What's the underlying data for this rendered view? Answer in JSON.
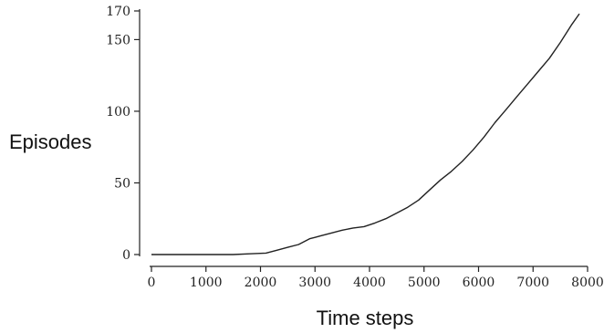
{
  "chart_data": {
    "type": "line",
    "xlabel": "Time steps",
    "ylabel": "Episodes",
    "xlim": [
      0,
      8000
    ],
    "ylim": [
      0,
      170
    ],
    "x_ticks": [
      0,
      1000,
      2000,
      3000,
      4000,
      5000,
      6000,
      7000,
      8000
    ],
    "y_ticks": [
      0,
      50,
      100,
      150,
      170
    ],
    "grid": false,
    "colors": {
      "line": "#222222",
      "axis": "#222222"
    },
    "series": [
      {
        "x": [
          0,
          500,
          1000,
          1500,
          1800,
          2100,
          2300,
          2500,
          2700,
          2800,
          2900,
          3000,
          3100,
          3300,
          3500,
          3700,
          3900,
          4100,
          4300,
          4500,
          4700,
          4900,
          5100,
          5300,
          5500,
          5700,
          5900,
          6100,
          6300,
          6500,
          6700,
          6900,
          7100,
          7300,
          7500,
          7700,
          7850
        ],
        "y": [
          0,
          0,
          0,
          0,
          0.5,
          1,
          3,
          5,
          7,
          9,
          11,
          12,
          13,
          15,
          17,
          18.5,
          19.5,
          22,
          25,
          29,
          33,
          38,
          45,
          52,
          58,
          65,
          73,
          82,
          92,
          101,
          110,
          119,
          128,
          137,
          148,
          160,
          168
        ]
      }
    ]
  }
}
